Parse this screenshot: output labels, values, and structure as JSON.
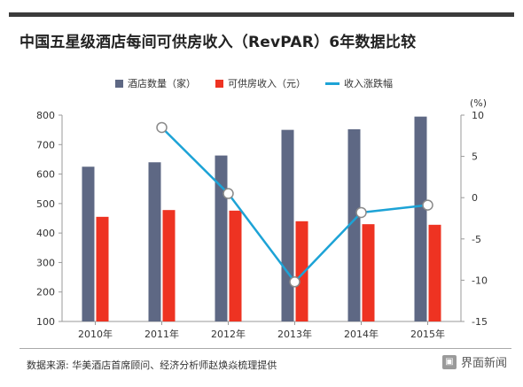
{
  "title": "中国五星级酒店每间可供房收入（RevPAR）6年数据比较",
  "source_text": "数据来源: 华美酒店首席顾问、经济分析师赵焕焱梳理提供",
  "brand": {
    "name": "界面新闻",
    "icon": "jiemian-logo-icon"
  },
  "colors": {
    "bar1": "#5e6884",
    "bar2": "#ee3322",
    "line": "#1da3d6",
    "marker_fill": "#ffffff",
    "marker_stroke": "#8a8a8a"
  },
  "chart_data": {
    "type": "bar",
    "categories": [
      "2010年",
      "2011年",
      "2012年",
      "2013年",
      "2014年",
      "2015年"
    ],
    "series": [
      {
        "name": "酒店数量（家）",
        "axis": "left",
        "kind": "bar",
        "values": [
          625,
          640,
          663,
          750,
          752,
          795
        ]
      },
      {
        "name": "可供房收入（元）",
        "axis": "left",
        "kind": "bar",
        "values": [
          455,
          478,
          476,
          440,
          430,
          428
        ]
      },
      {
        "name": "收入涨跌幅",
        "axis": "right",
        "kind": "line",
        "values": [
          null,
          8.5,
          0.5,
          -10.2,
          -1.8,
          -0.9
        ]
      }
    ],
    "y_left": {
      "min": 100,
      "max": 800,
      "ticks": [
        "100",
        "200",
        "300",
        "400",
        "500",
        "600",
        "700",
        "800"
      ]
    },
    "y_right": {
      "min": -15,
      "max": 10,
      "ticks": [
        "-15",
        "-10",
        "-5",
        "0",
        "5",
        "10"
      ],
      "unit": "(%)"
    },
    "grid": false,
    "legend_position": "top-center"
  }
}
